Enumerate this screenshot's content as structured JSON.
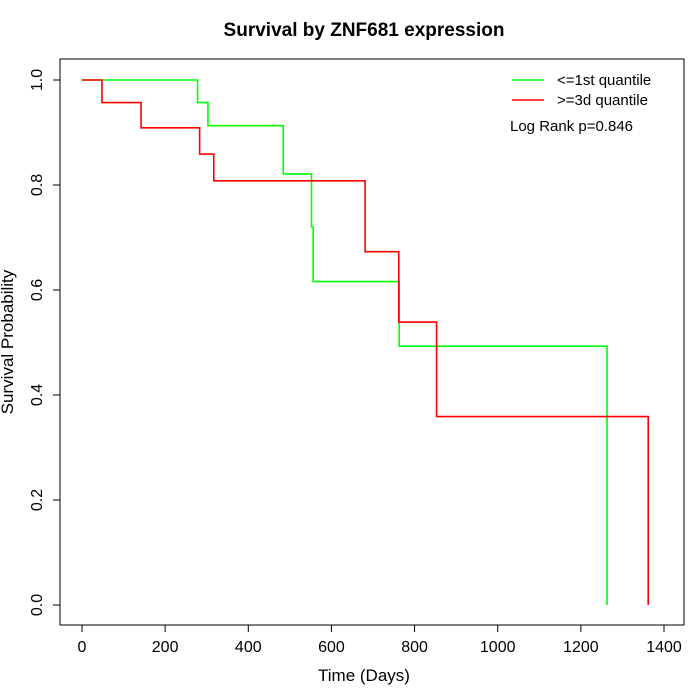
{
  "chart_data": {
    "type": "line",
    "step": true,
    "title": "Survival by ZNF681 expression",
    "xlabel": "Time (Days)",
    "ylabel": "Survival Probability",
    "xlim": [
      0,
      1400
    ],
    "ylim": [
      0,
      1
    ],
    "xticks": [
      "0",
      "200",
      "400",
      "600",
      "800",
      "1000",
      "1200",
      "1400"
    ],
    "yticks": [
      "0.0",
      "0.2",
      "0.4",
      "0.6",
      "0.8",
      "1.0"
    ],
    "grid": false,
    "legend_position": "top-right",
    "annotation": "Log Rank p=0.846",
    "series": [
      {
        "name": "<=1st quantile",
        "color": "#00ff00",
        "x": [
          0,
          278,
          303,
          484,
          552,
          556,
          763,
          1263,
          1263
        ],
        "y": [
          1.0,
          0.957,
          0.913,
          0.821,
          0.72,
          0.616,
          0.493,
          0.493,
          0.0
        ]
      },
      {
        "name": ">=3d quantile",
        "color": "#ff0000",
        "x": [
          0,
          48,
          142,
          283,
          317,
          681,
          762,
          853,
          1362,
          1362
        ],
        "y": [
          1.0,
          0.957,
          0.909,
          0.859,
          0.808,
          0.673,
          0.539,
          0.359,
          0.359,
          0.0
        ]
      }
    ]
  }
}
